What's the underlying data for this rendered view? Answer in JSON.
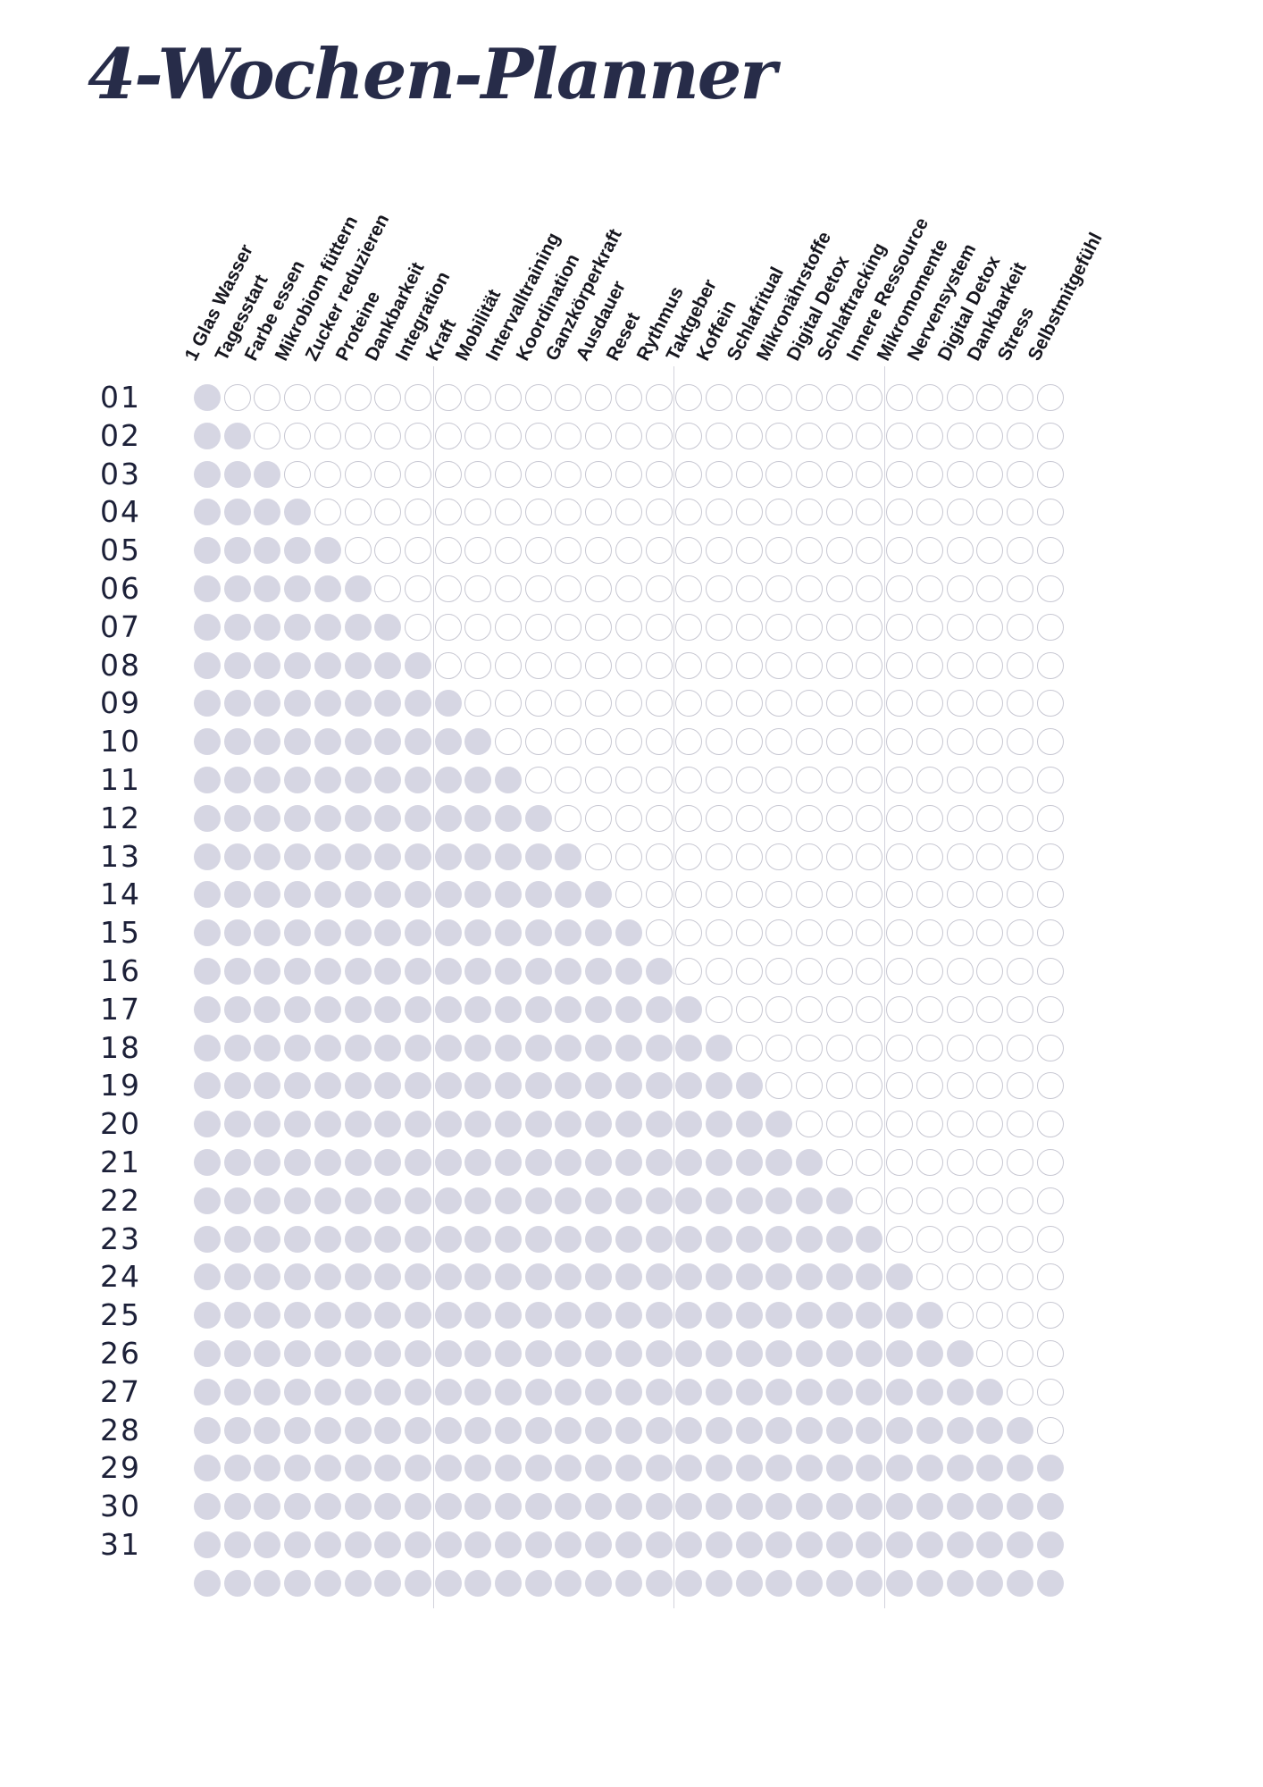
{
  "title": "4-Wochen-Planner",
  "habits": [
    "1 Glas Wasser",
    "Tagesstart",
    "Farbe essen",
    "Mikrobiom füttern",
    "Zucker reduzieren",
    "Proteine",
    "Dankbarkeit",
    "Integration",
    "Kraft",
    "Mobilität",
    "Intervalltraining",
    "Koordination",
    "Ganzkörperkraft",
    "Ausdauer",
    "Reset",
    "Rythmus",
    "Taktgeber",
    "Koffein",
    "Schlafritual",
    "Mikronährstoffe",
    "Digital Detox",
    "Schlaftracking",
    "Innere Ressource",
    "Mikromomente",
    "Nervensystem",
    "Digital Detox",
    "Dankbarkeit",
    "Stress",
    "Selbstmitgefühl"
  ],
  "week_separators_after_column": [
    8,
    16,
    23
  ],
  "days": [
    {
      "label": "01",
      "filled": 1
    },
    {
      "label": "02",
      "filled": 2
    },
    {
      "label": "03",
      "filled": 3
    },
    {
      "label": "04",
      "filled": 4
    },
    {
      "label": "05",
      "filled": 5
    },
    {
      "label": "06",
      "filled": 6
    },
    {
      "label": "07",
      "filled": 7
    },
    {
      "label": "08",
      "filled": 8
    },
    {
      "label": "09",
      "filled": 9
    },
    {
      "label": "10",
      "filled": 10
    },
    {
      "label": "11",
      "filled": 11
    },
    {
      "label": "12",
      "filled": 12
    },
    {
      "label": "13",
      "filled": 13
    },
    {
      "label": "14",
      "filled": 14
    },
    {
      "label": "15",
      "filled": 15
    },
    {
      "label": "16",
      "filled": 16
    },
    {
      "label": "17",
      "filled": 17
    },
    {
      "label": "18",
      "filled": 18
    },
    {
      "label": "19",
      "filled": 19
    },
    {
      "label": "20",
      "filled": 20
    },
    {
      "label": "21",
      "filled": 21
    },
    {
      "label": "22",
      "filled": 22
    },
    {
      "label": "23",
      "filled": 23
    },
    {
      "label": "24",
      "filled": 24
    },
    {
      "label": "25",
      "filled": 25
    },
    {
      "label": "26",
      "filled": 26
    },
    {
      "label": "27",
      "filled": 27
    },
    {
      "label": "28",
      "filled": 28
    },
    {
      "label": "29",
      "filled": 29
    },
    {
      "label": "30",
      "filled": 29
    },
    {
      "label": "31",
      "filled": 29
    },
    {
      "label": "",
      "filled": 29
    }
  ],
  "colors": {
    "filled": "#d6d6e3",
    "empty_border": "#c7c7d2",
    "separator": "#d2d2dc",
    "title": "#272c49",
    "header_text": "#17171f",
    "day_label": "#1c2038"
  }
}
